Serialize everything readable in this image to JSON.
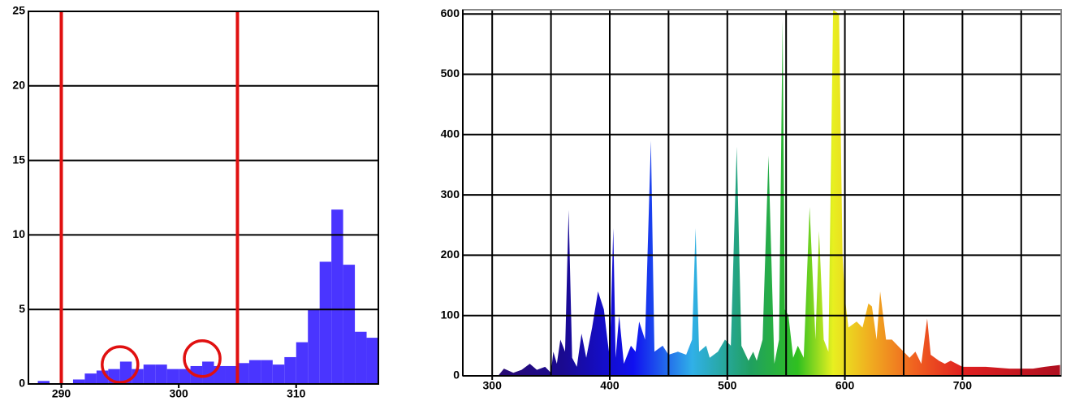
{
  "chart_data": [
    {
      "type": "histogram",
      "color": "#4a35ff",
      "bins": [
        288,
        289,
        290,
        291,
        292,
        293,
        294,
        295,
        296,
        297,
        298,
        299,
        300,
        301,
        302,
        303,
        304,
        305,
        306,
        307,
        308,
        309,
        310,
        311,
        312,
        313,
        314,
        315,
        316,
        317
      ],
      "values": [
        0.2,
        0,
        0,
        0.3,
        0.7,
        0.9,
        1.0,
        1.5,
        1.0,
        1.3,
        1.3,
        1.0,
        1.0,
        1.2,
        1.5,
        1.2,
        1.2,
        1.4,
        1.6,
        1.6,
        1.3,
        1.8,
        2.8,
        5.0,
        8.2,
        11.7,
        8.0,
        3.5,
        3.1
      ],
      "xlim": [
        287.2,
        317
      ],
      "xticks": [
        290,
        300,
        310
      ],
      "ylim": [
        0,
        25
      ],
      "yticks": [
        0,
        5,
        10,
        15,
        20,
        25
      ],
      "grid": true,
      "vlines": [
        290,
        305
      ],
      "vline_color": "#e01010",
      "circles": [
        {
          "x": 295,
          "y": 1.3
        },
        {
          "x": 302,
          "y": 1.7
        }
      ],
      "circle_color": "#e01010"
    },
    {
      "type": "area",
      "x": [
        305,
        310,
        318,
        325,
        332,
        338,
        345,
        350,
        352,
        355,
        358,
        362,
        365,
        368,
        372,
        376,
        380,
        385,
        390,
        395,
        398,
        400,
        403,
        405,
        408,
        412,
        418,
        422,
        425,
        430,
        435,
        438,
        445,
        450,
        458,
        465,
        470,
        473,
        476,
        482,
        485,
        492,
        498,
        503,
        508,
        512,
        518,
        522,
        525,
        530,
        535,
        540,
        544,
        547,
        549,
        552,
        556,
        560,
        565,
        570,
        575,
        578,
        582,
        586,
        590,
        595,
        598,
        600,
        603,
        610,
        615,
        620,
        623,
        627,
        630,
        635,
        640,
        645,
        650,
        655,
        660,
        665,
        670,
        673,
        680,
        685,
        690,
        700,
        720,
        740,
        760,
        770,
        783
      ],
      "y": [
        0,
        12,
        5,
        10,
        20,
        10,
        15,
        5,
        40,
        20,
        60,
        40,
        275,
        30,
        15,
        70,
        30,
        80,
        140,
        110,
        60,
        30,
        245,
        30,
        100,
        20,
        50,
        40,
        90,
        60,
        390,
        40,
        50,
        35,
        40,
        35,
        60,
        245,
        40,
        50,
        30,
        40,
        60,
        50,
        380,
        50,
        25,
        40,
        25,
        60,
        365,
        20,
        60,
        590,
        110,
        100,
        30,
        50,
        30,
        280,
        60,
        240,
        60,
        40,
        607,
        600,
        200,
        130,
        80,
        90,
        80,
        120,
        115,
        60,
        140,
        60,
        60,
        50,
        40,
        30,
        40,
        20,
        95,
        35,
        25,
        20,
        25,
        15,
        15,
        12,
        12,
        15,
        18
      ],
      "gradient": [
        {
          "x": 300,
          "color": "#2a0a70"
        },
        {
          "x": 360,
          "color": "#1a0a90"
        },
        {
          "x": 420,
          "color": "#1010f0"
        },
        {
          "x": 470,
          "color": "#30b0e8"
        },
        {
          "x": 520,
          "color": "#20a060"
        },
        {
          "x": 560,
          "color": "#30c020"
        },
        {
          "x": 590,
          "color": "#e8f020"
        },
        {
          "x": 620,
          "color": "#f0b020"
        },
        {
          "x": 660,
          "color": "#f06020"
        },
        {
          "x": 700,
          "color": "#e02020"
        },
        {
          "x": 780,
          "color": "#b01020"
        }
      ],
      "xlim": [
        275,
        784
      ],
      "xticks": [
        300,
        400,
        500,
        600,
        700
      ],
      "xgrid": [
        300,
        350,
        400,
        450,
        500,
        550,
        600,
        650,
        700,
        750
      ],
      "ylim": [
        0,
        607
      ],
      "yticks": [
        0,
        100,
        200,
        300,
        400,
        500,
        600
      ],
      "grid": true
    }
  ]
}
